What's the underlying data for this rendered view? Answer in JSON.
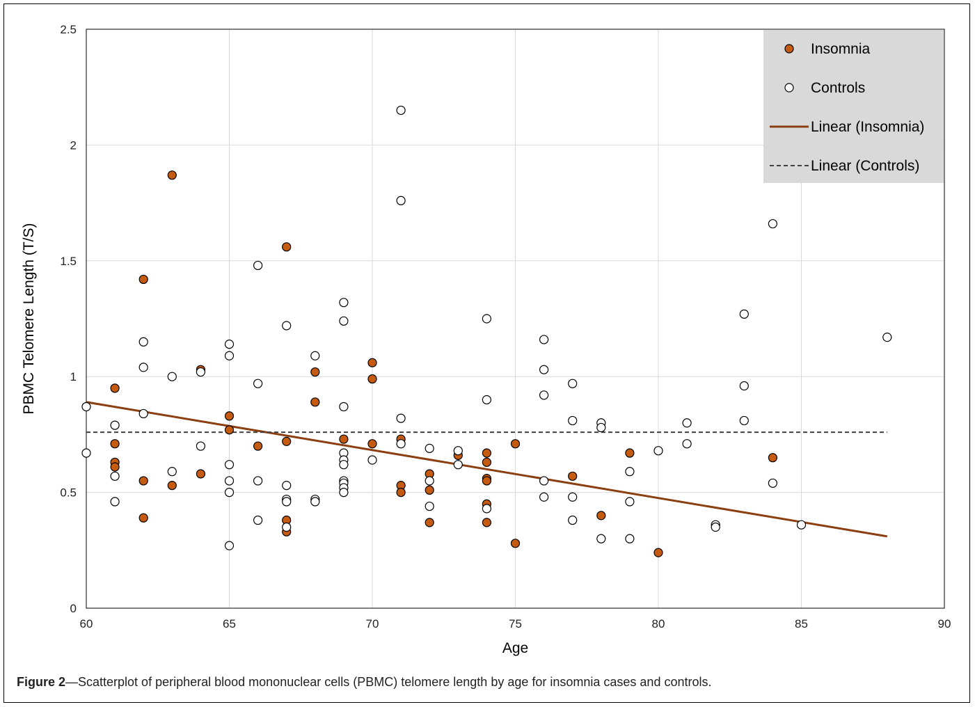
{
  "chart_data": {
    "type": "scatter",
    "xlabel": "Age",
    "ylabel": "PBMC Telomere Length (T/S)",
    "xlim": [
      60,
      90
    ],
    "ylim": [
      0,
      2.5
    ],
    "x_ticks": [
      "60",
      "65",
      "70",
      "75",
      "80",
      "85",
      "90"
    ],
    "y_ticks": [
      "0",
      "0.5",
      "1",
      "1.5",
      "2",
      "2.5"
    ],
    "grid": true,
    "legend_position": "top-right",
    "colors": {
      "insomnia": "#c55a11",
      "controls": "#ffffff",
      "insomnia_line": "#8b3e10",
      "controls_line": "#404040",
      "legend_bg": "#d9d9d9"
    },
    "series": [
      {
        "name": "Insomnia",
        "points": [
          [
            61,
            0.95
          ],
          [
            61,
            0.71
          ],
          [
            61,
            0.63
          ],
          [
            61,
            0.61
          ],
          [
            62,
            1.42
          ],
          [
            62,
            0.55
          ],
          [
            62,
            0.39
          ],
          [
            63,
            1.87
          ],
          [
            63,
            0.53
          ],
          [
            64,
            1.03
          ],
          [
            64,
            0.58
          ],
          [
            65,
            0.83
          ],
          [
            65,
            0.77
          ],
          [
            66,
            0.7
          ],
          [
            67,
            1.56
          ],
          [
            67,
            0.72
          ],
          [
            67,
            0.38
          ],
          [
            67,
            0.33
          ],
          [
            68,
            1.02
          ],
          [
            68,
            0.89
          ],
          [
            69,
            0.73
          ],
          [
            70,
            1.06
          ],
          [
            70,
            0.99
          ],
          [
            70,
            0.71
          ],
          [
            71,
            0.73
          ],
          [
            71,
            0.53
          ],
          [
            71,
            0.5
          ],
          [
            72,
            0.58
          ],
          [
            72,
            0.51
          ],
          [
            72,
            0.37
          ],
          [
            73,
            0.66
          ],
          [
            74,
            0.67
          ],
          [
            74,
            0.63
          ],
          [
            74,
            0.56
          ],
          [
            74,
            0.55
          ],
          [
            74,
            0.45
          ],
          [
            74,
            0.37
          ],
          [
            75,
            0.71
          ],
          [
            75,
            0.28
          ],
          [
            77,
            0.57
          ],
          [
            78,
            0.4
          ],
          [
            79,
            0.67
          ],
          [
            80,
            0.24
          ],
          [
            84,
            0.65
          ]
        ]
      },
      {
        "name": "Controls",
        "points": [
          [
            60,
            0.87
          ],
          [
            60,
            0.67
          ],
          [
            61,
            0.79
          ],
          [
            61,
            0.57
          ],
          [
            61,
            0.46
          ],
          [
            62,
            1.15
          ],
          [
            62,
            1.04
          ],
          [
            62,
            0.84
          ],
          [
            63,
            1.0
          ],
          [
            63,
            0.59
          ],
          [
            64,
            1.02
          ],
          [
            64,
            0.7
          ],
          [
            65,
            1.14
          ],
          [
            65,
            1.09
          ],
          [
            65,
            0.62
          ],
          [
            65,
            0.55
          ],
          [
            65,
            0.5
          ],
          [
            65,
            0.27
          ],
          [
            66,
            1.48
          ],
          [
            66,
            0.97
          ],
          [
            66,
            0.55
          ],
          [
            66,
            0.38
          ],
          [
            67,
            1.22
          ],
          [
            67,
            0.53
          ],
          [
            67,
            0.47
          ],
          [
            67,
            0.46
          ],
          [
            67,
            0.35
          ],
          [
            68,
            1.09
          ],
          [
            68,
            0.47
          ],
          [
            68,
            0.46
          ],
          [
            69,
            1.32
          ],
          [
            69,
            1.24
          ],
          [
            69,
            0.87
          ],
          [
            69,
            0.67
          ],
          [
            69,
            0.64
          ],
          [
            69,
            0.62
          ],
          [
            69,
            0.55
          ],
          [
            69,
            0.54
          ],
          [
            69,
            0.52
          ],
          [
            69,
            0.5
          ],
          [
            70,
            0.64
          ],
          [
            71,
            2.15
          ],
          [
            71,
            1.76
          ],
          [
            71,
            0.82
          ],
          [
            71,
            0.71
          ],
          [
            72,
            0.69
          ],
          [
            72,
            0.55
          ],
          [
            72,
            0.44
          ],
          [
            73,
            0.68
          ],
          [
            73,
            0.62
          ],
          [
            74,
            1.25
          ],
          [
            74,
            0.9
          ],
          [
            74,
            0.43
          ],
          [
            76,
            1.16
          ],
          [
            76,
            1.03
          ],
          [
            76,
            0.92
          ],
          [
            76,
            0.55
          ],
          [
            76,
            0.48
          ],
          [
            77,
            0.97
          ],
          [
            77,
            0.81
          ],
          [
            77,
            0.48
          ],
          [
            77,
            0.38
          ],
          [
            78,
            0.8
          ],
          [
            78,
            0.78
          ],
          [
            78,
            0.3
          ],
          [
            79,
            0.59
          ],
          [
            79,
            0.46
          ],
          [
            79,
            0.3
          ],
          [
            80,
            0.68
          ],
          [
            81,
            0.8
          ],
          [
            81,
            0.71
          ],
          [
            82,
            0.36
          ],
          [
            82,
            0.35
          ],
          [
            83,
            1.27
          ],
          [
            83,
            0.96
          ],
          [
            83,
            0.81
          ],
          [
            84,
            1.66
          ],
          [
            84,
            0.54
          ],
          [
            85,
            0.36
          ],
          [
            88,
            1.17
          ]
        ]
      }
    ],
    "trendlines": [
      {
        "name": "Linear (Insomnia)",
        "style": "solid",
        "x": [
          60,
          88
        ],
        "y": [
          0.89,
          0.31
        ]
      },
      {
        "name": "Linear (Controls)",
        "style": "dashed",
        "x": [
          60,
          88
        ],
        "y": [
          0.76,
          0.76
        ]
      }
    ]
  },
  "caption": {
    "label": "Figure 2",
    "text": "—Scatterplot of peripheral blood mononuclear cells (PBMC) telomere length by age for insomnia cases and controls."
  }
}
